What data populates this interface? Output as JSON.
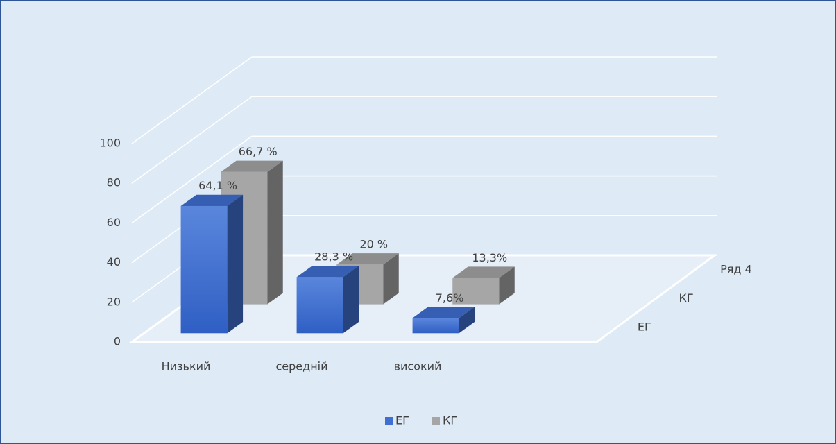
{
  "chart_data": {
    "type": "bar3d",
    "categories": [
      "Низький",
      "середній",
      "високий"
    ],
    "depth_labels": [
      "ЕГ",
      "КГ",
      "Ряд 4"
    ],
    "series": [
      {
        "name": "ЕГ",
        "color": "#3f6fd1",
        "values": [
          64.1,
          28.3,
          7.6
        ],
        "value_labels": [
          "64,1 %",
          "28,3 %",
          "7,6%"
        ]
      },
      {
        "name": "КГ",
        "color": "#a6a6a6",
        "values": [
          66.7,
          20,
          13.3
        ],
        "value_labels": [
          "66,7 %",
          "20 %",
          "13,3%"
        ]
      }
    ],
    "ylim": [
      0,
      100
    ],
    "yticks": [
      0,
      20,
      40,
      60,
      80,
      100
    ],
    "grid": true,
    "legend": "bottom"
  }
}
